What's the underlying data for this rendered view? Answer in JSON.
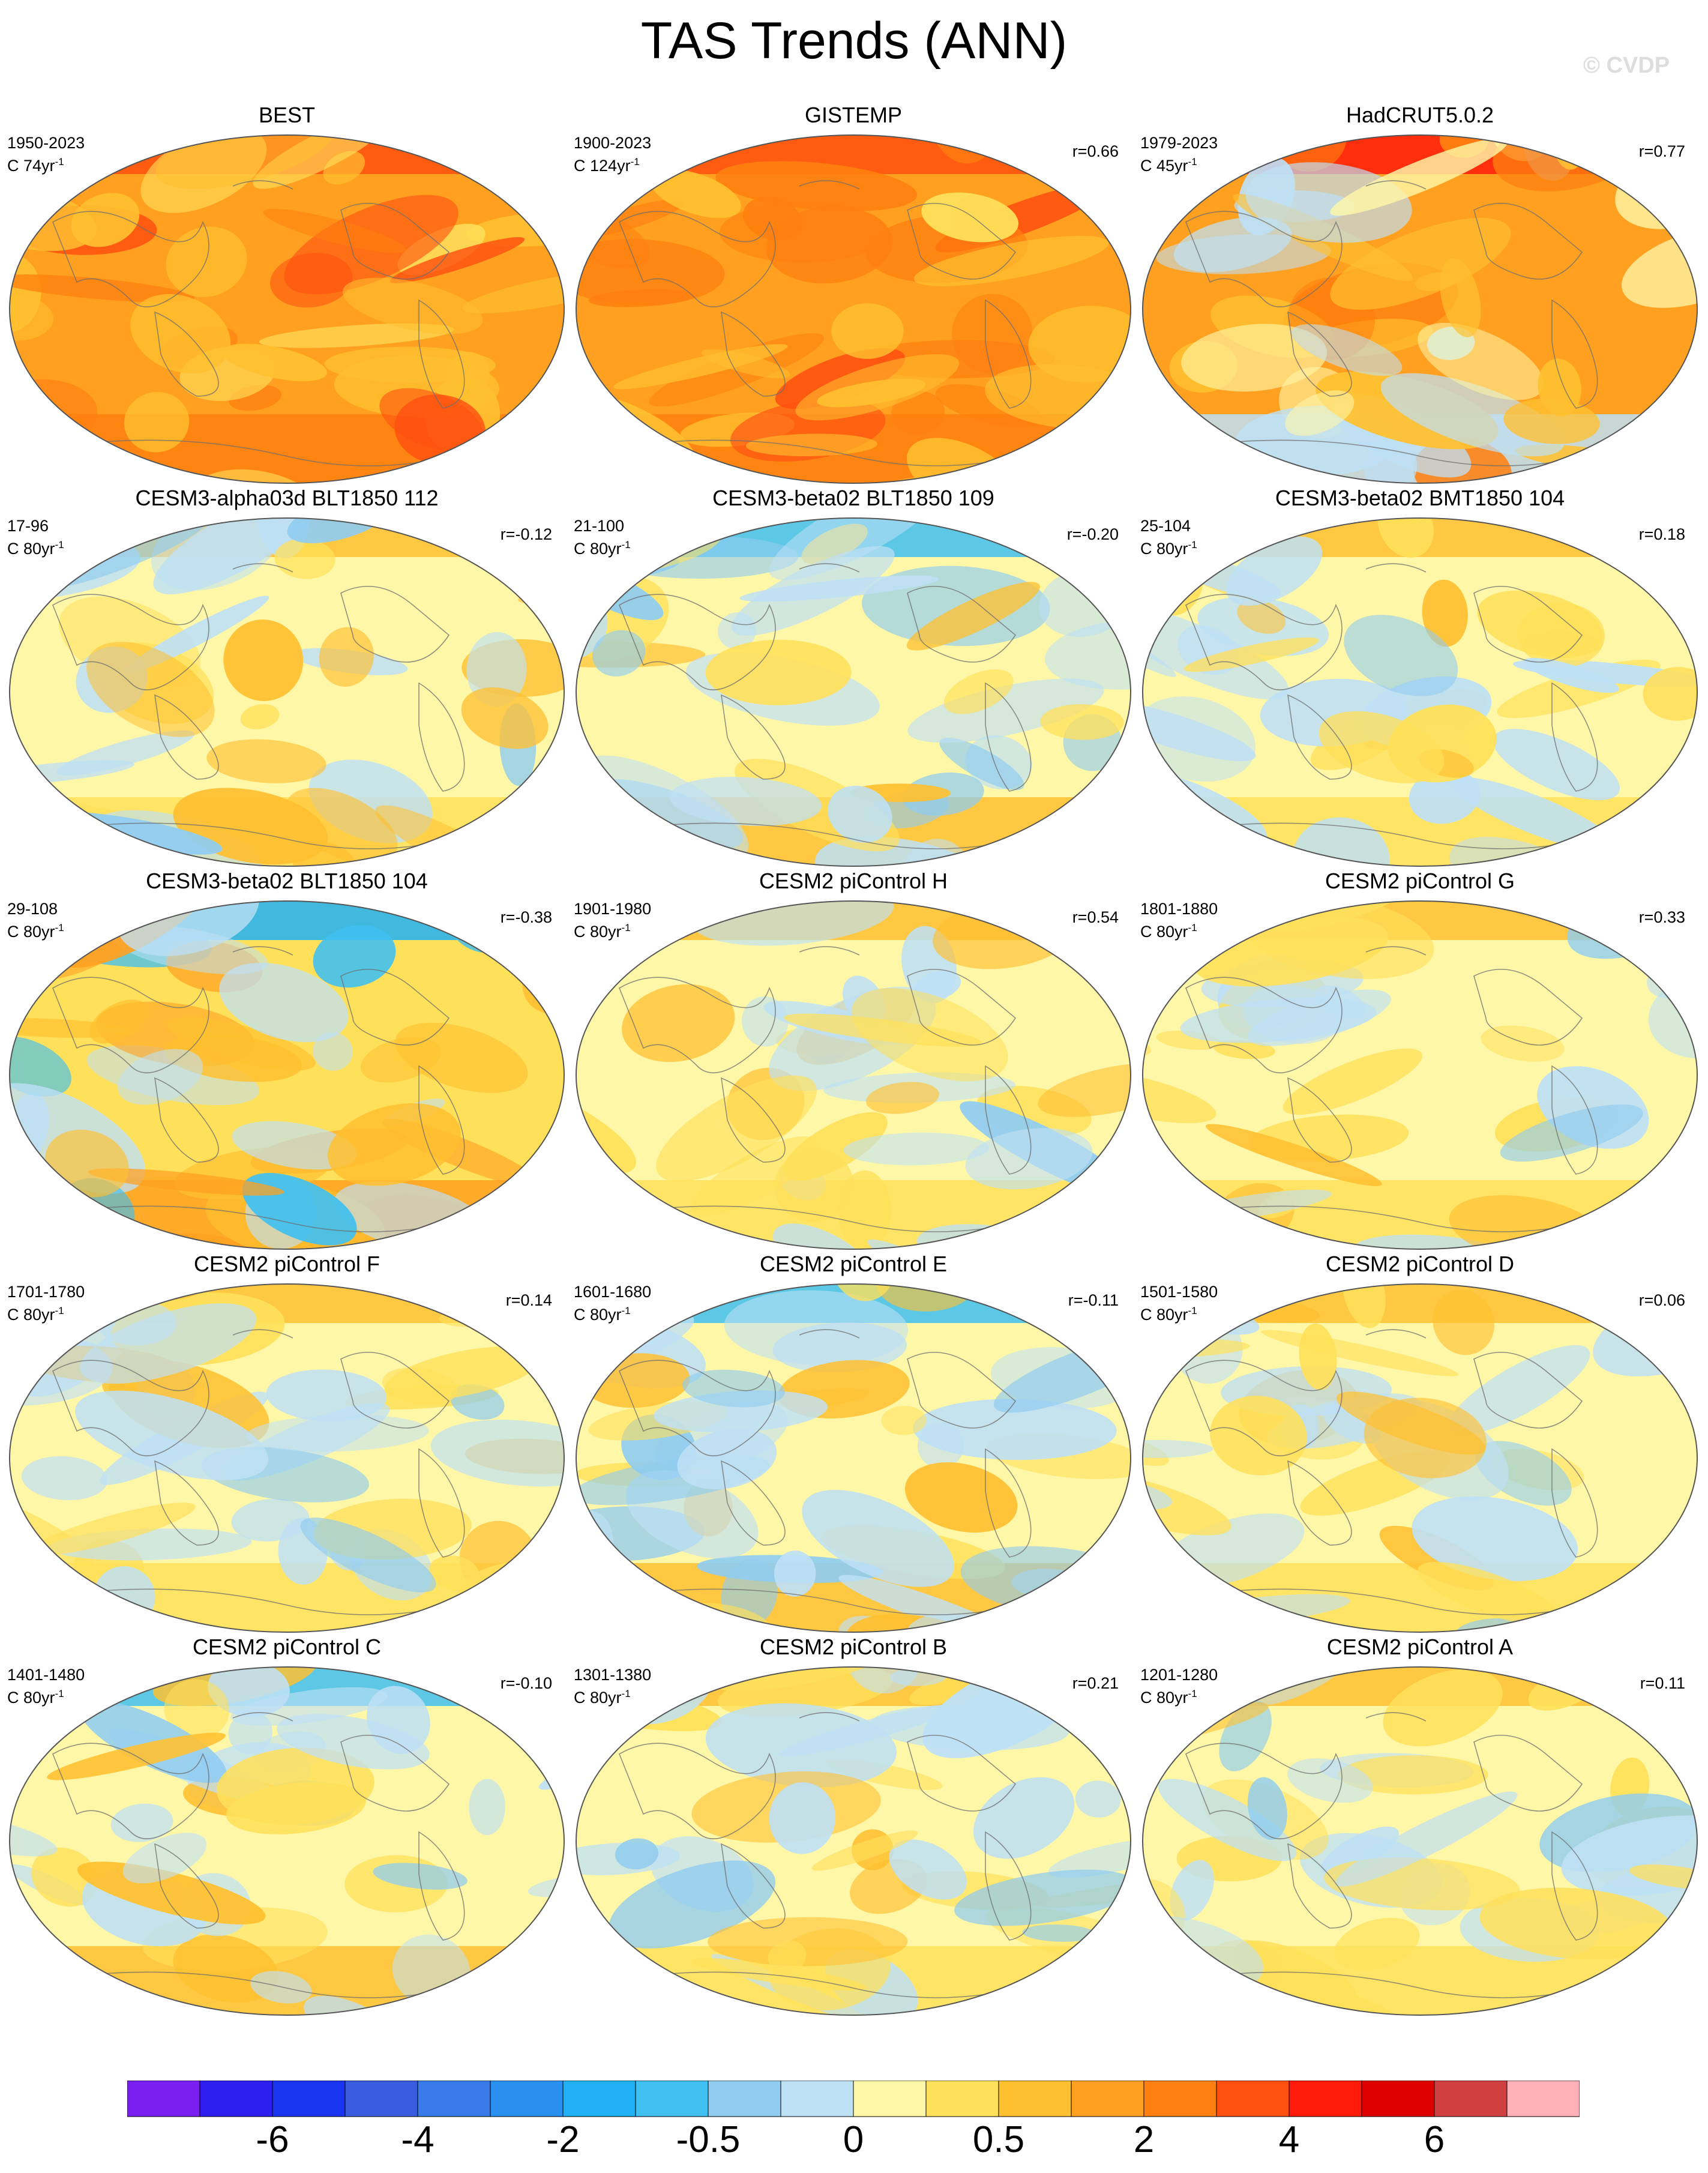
{
  "title": "TAS Trends (ANN)",
  "watermark": "© CVDP",
  "rate_unit": "yr",
  "rate_exponent": "-1",
  "panels": [
    {
      "title": "BEST",
      "years": "1950-2023",
      "rate": "C 74",
      "r": "",
      "style": "obs_warm",
      "seed": 3
    },
    {
      "title": "GISTEMP",
      "years": "1900-2023",
      "rate": "C 124",
      "r": "r=0.66",
      "style": "obs_warm",
      "seed": 7
    },
    {
      "title": "HadCRUT5.0.2",
      "years": "1979-2023",
      "rate": "C 45",
      "r": "r=0.77",
      "style": "obs_mixed",
      "seed": 11
    },
    {
      "title": "CESM3-alpha03d BLT1850 112",
      "years": "17-96",
      "rate": "C 80",
      "r": "r=-0.12",
      "style": "model",
      "seed": 13
    },
    {
      "title": "CESM3-beta02 BLT1850 109",
      "years": "21-100",
      "rate": "C 80",
      "r": "r=-0.20",
      "style": "model_cool",
      "seed": 17
    },
    {
      "title": "CESM3-beta02 BMT1850 104",
      "years": "25-104",
      "rate": "C 80",
      "r": "r=0.18",
      "style": "model",
      "seed": 19
    },
    {
      "title": "CESM3-beta02 BLT1850 104",
      "years": "29-108",
      "rate": "C 80",
      "r": "r=-0.38",
      "style": "model_strong",
      "seed": 23
    },
    {
      "title": "CESM2 piControl H",
      "years": "1901-1980",
      "rate": "C 80",
      "r": "r=0.54",
      "style": "model",
      "seed": 29
    },
    {
      "title": "CESM2 piControl G",
      "years": "1801-1880",
      "rate": "C 80",
      "r": "r=0.33",
      "style": "model",
      "seed": 31
    },
    {
      "title": "CESM2 piControl F",
      "years": "1701-1780",
      "rate": "C 80",
      "r": "r=0.14",
      "style": "model",
      "seed": 37
    },
    {
      "title": "CESM2 piControl E",
      "years": "1601-1680",
      "rate": "C 80",
      "r": "r=-0.11",
      "style": "model_cool",
      "seed": 41
    },
    {
      "title": "CESM2 piControl D",
      "years": "1501-1580",
      "rate": "C 80",
      "r": "r=0.06",
      "style": "model",
      "seed": 43
    },
    {
      "title": "CESM2 piControl C",
      "years": "1401-1480",
      "rate": "C 80",
      "r": "r=-0.10",
      "style": "model_cool",
      "seed": 47
    },
    {
      "title": "CESM2 piControl B",
      "years": "1301-1380",
      "rate": "C 80",
      "r": "r=0.21",
      "style": "model",
      "seed": 53
    },
    {
      "title": "CESM2 piControl A",
      "years": "1201-1280",
      "rate": "C 80",
      "r": "r=0.11",
      "style": "model",
      "seed": 59
    }
  ],
  "colorbar": {
    "colors": [
      "#7a1ff0",
      "#2e1ff0",
      "#1a35f0",
      "#3a5de0",
      "#3a7ae8",
      "#2a90f0",
      "#20b0f5",
      "#40c0f0",
      "#90ccf0",
      "#bee0f5",
      "#fff7a8",
      "#ffe05a",
      "#ffc030",
      "#ffa020",
      "#ff8010",
      "#ff5010",
      "#ff1a0a",
      "#dd0000",
      "#d04040",
      "#ffb0b8"
    ],
    "labels": [
      "-6",
      "-4",
      "-2",
      "-0.5",
      "0",
      "0.5",
      "2",
      "4",
      "6"
    ]
  },
  "colors": {
    "coastline": "#6e6e6e",
    "map_outline": "#555555",
    "missing": "#ffffff"
  }
}
